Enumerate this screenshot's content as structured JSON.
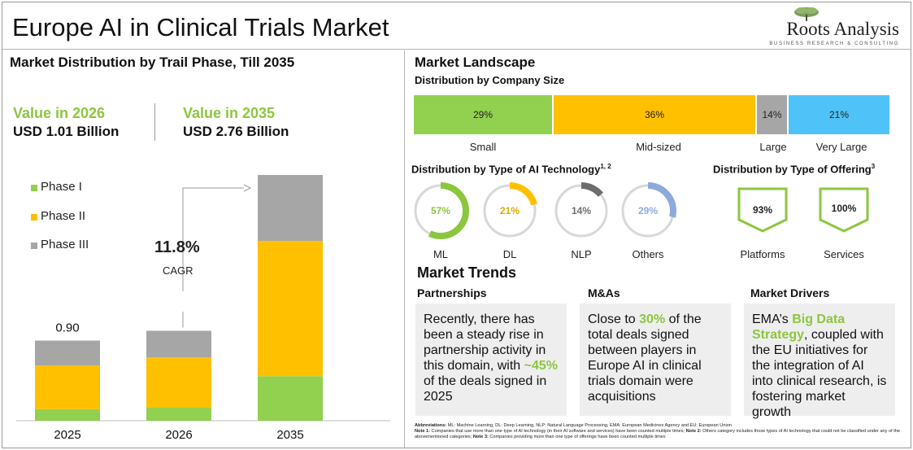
{
  "header": {
    "title": "Europe AI in Clinical Trials Market",
    "logo_name": "Roots Analysis",
    "logo_tagline": "BUSINESS RESEARCH & CONSULTING"
  },
  "left": {
    "section_title": "Market Distribution by Trail Phase, Till 2035",
    "value_2026_label": "Value in 2026",
    "value_2026_amount": "USD 1.01 Billion",
    "value_2035_label": "Value in 2035",
    "value_2035_amount": "USD 2.76 Billion",
    "cagr_value": "11.8%",
    "cagr_label": "CAGR",
    "bar_top_label": "0.90"
  },
  "chart_data": [
    {
      "type": "bar",
      "stacked": true,
      "title": "Market Distribution by Trail Phase, Till 2035",
      "categories": [
        "2025",
        "2026",
        "2035"
      ],
      "series": [
        {
          "name": "Phase I",
          "color": "#92d050",
          "values": [
            0.13,
            0.15,
            0.5
          ]
        },
        {
          "name": "Phase II",
          "color": "#ffc000",
          "values": [
            0.49,
            0.56,
            1.52
          ]
        },
        {
          "name": "Phase III",
          "color": "#a6a6a6",
          "values": [
            0.28,
            0.3,
            0.74
          ]
        }
      ],
      "totals": [
        0.9,
        1.01,
        2.76
      ],
      "data_labels": {
        "2025": "0.90"
      },
      "ylim": [
        0,
        2.76
      ],
      "legend_position": "top-left",
      "grid": false
    },
    {
      "type": "bar",
      "orientation": "horizontal-stacked",
      "title": "Distribution by Company Size",
      "categories": [
        "Small",
        "Mid-sized",
        "Large",
        "Very Large"
      ],
      "values": [
        29,
        36,
        14,
        21
      ],
      "labels": [
        "29%",
        "36%",
        "14%",
        "21%"
      ],
      "colors": [
        "#92d050",
        "#ffc000",
        "#a6a6a6",
        "#4fc3f7"
      ]
    },
    {
      "type": "pie",
      "style": "donut",
      "title": "Distribution by Type of AI Technology",
      "categories": [
        "ML",
        "DL",
        "NLP",
        "Others"
      ],
      "values": [
        57,
        21,
        14,
        29
      ],
      "labels": [
        "57%",
        "21%",
        "14%",
        "29%"
      ],
      "colors": [
        "#8cc63f",
        "#ffc000",
        "#6d6d6d",
        "#8eaadb"
      ]
    },
    {
      "type": "bar",
      "style": "badge",
      "title": "Distribution by Type of Offering",
      "categories": [
        "Platforms",
        "Services"
      ],
      "values": [
        93,
        100
      ],
      "labels": [
        "93%",
        "100%"
      ]
    }
  ],
  "landscape": {
    "title": "Market Landscape",
    "company_size_title": "Distribution by Company Size",
    "ai_tech_title": "Distribution by Type of AI Technology",
    "ai_tech_sup": "1, 2",
    "offering_title": "Distribution by Type of Offering",
    "offering_sup": "3"
  },
  "trends": {
    "title": "Market Trends",
    "partnerships": {
      "head": "Partnerships",
      "text_a": "Recently, there has been a steady rise in partnership activity in this domain, with ",
      "highlight": "~45%",
      "text_b": " of the deals signed in 2025"
    },
    "mas": {
      "head": "M&As",
      "text_a": "Close to ",
      "highlight": "30%",
      "text_b": " of the total deals signed between players in Europe AI in clinical trials domain were acquisitions"
    },
    "drivers": {
      "head": "Market Drivers",
      "text_a": "EMA’s ",
      "highlight": "Big Data Strategy",
      "text_b": ", coupled with the EU initiatives for the integration of AI into clinical research, is fostering market growth"
    }
  },
  "notes": {
    "abbr_label": "Abbreviations:",
    "abbr_text": " ML: Machine Learning, DL: Deep Learning, NLP: Natural Language Processing, EMA: European Medicines Agency and EU: European Union",
    "note1_label": "Note 1:",
    "note1_text": " Companies that use more than one type of AI technology (in their AI software and services) have been counted multiple times; ",
    "note2_label": "Note 2:",
    "note2_text": " Others category includes those types of AI technology that could not be classified under any of the abovementioned categories; ",
    "note3_label": "Note 3:",
    "note3_text": " Companies providing more than one type of offerings have been counted multiple times"
  }
}
